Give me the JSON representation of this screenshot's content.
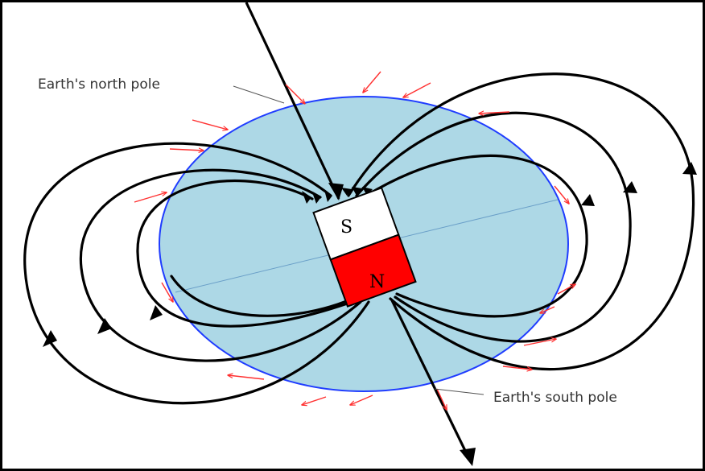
{
  "labels": {
    "north_pole": "Earth's north pole",
    "south_pole": "Earth's south pole"
  },
  "magnet": {
    "top_pole": "S",
    "bottom_pole": "N",
    "top_color": "#ffffff",
    "bottom_color": "#ff0000"
  },
  "colors": {
    "earth_fill": "#add8e6",
    "earth_outline": "#1f3cff",
    "field_lines": "#000000",
    "field_direction_arrows": "#ff3030",
    "axis_line": "#6a9fc8"
  }
}
